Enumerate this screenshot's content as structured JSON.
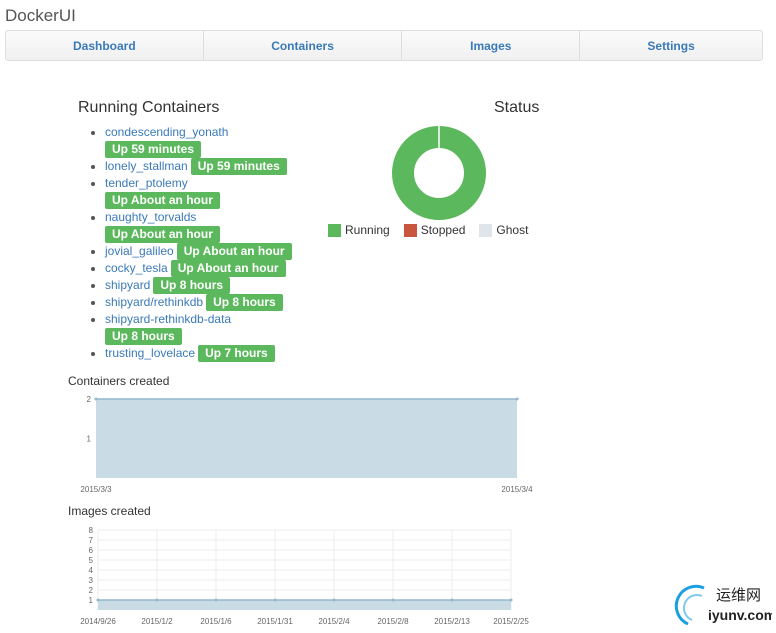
{
  "app": {
    "title": "DockerUI"
  },
  "nav": {
    "items": [
      "Dashboard",
      "Containers",
      "Images",
      "Settings"
    ]
  },
  "running": {
    "heading": "Running Containers",
    "containers": [
      {
        "name": "condescending_yonath",
        "status": "Up 59 minutes",
        "wrap": true
      },
      {
        "name": "lonely_stallman",
        "status": "Up 59 minutes",
        "wrap": false
      },
      {
        "name": "tender_ptolemy",
        "status": "Up About an hour",
        "wrap": true
      },
      {
        "name": "naughty_torvalds",
        "status": "Up About an hour",
        "wrap": true
      },
      {
        "name": "jovial_galileo",
        "status": "Up About an hour",
        "wrap": false
      },
      {
        "name": "cocky_tesla",
        "status": "Up About an hour",
        "wrap": false
      },
      {
        "name": "shipyard",
        "status": "Up 8 hours",
        "wrap": false
      },
      {
        "name": "shipyard/rethinkdb",
        "status": "Up 8 hours",
        "wrap": false
      },
      {
        "name": "shipyard-rethinkdb-data",
        "status": "Up 8 hours",
        "wrap": true
      },
      {
        "name": "trusting_lovelace",
        "status": "Up 7 hours",
        "wrap": false
      }
    ]
  },
  "status": {
    "heading": "Status",
    "legend": [
      {
        "label": "Running",
        "color": "#5cb85c"
      },
      {
        "label": "Stopped",
        "color": "#c9553f"
      },
      {
        "label": "Ghost",
        "color": "#dfe6ea"
      }
    ]
  },
  "chart_data": [
    {
      "type": "pie",
      "labels": [
        "Running",
        "Stopped",
        "Ghost"
      ],
      "values": [
        10,
        0,
        0
      ],
      "colors": [
        "#5cb85c",
        "#c9553f",
        "#dfe6ea"
      ]
    },
    {
      "type": "area",
      "title": "Containers created",
      "x": [
        "2015/3/3",
        "2015/3/4"
      ],
      "values": [
        2,
        2
      ],
      "yticks": [
        "2",
        "1"
      ],
      "ylim": [
        0,
        2
      ]
    },
    {
      "type": "area",
      "title": "Images created",
      "x": [
        "2014/9/26",
        "2015/1/2",
        "2015/1/6",
        "2015/1/31",
        "2015/2/4",
        "2015/2/8",
        "2015/2/13",
        "2015/2/25"
      ],
      "values": [
        1,
        1,
        1,
        1,
        1,
        1,
        1,
        1
      ],
      "yticks": [
        "8",
        "7",
        "6",
        "5",
        "4",
        "3",
        "2",
        "1"
      ],
      "ylim": [
        0,
        8
      ]
    }
  ],
  "watermark": {
    "text_cn": "运维网",
    "text_en": "iyunv.com"
  }
}
